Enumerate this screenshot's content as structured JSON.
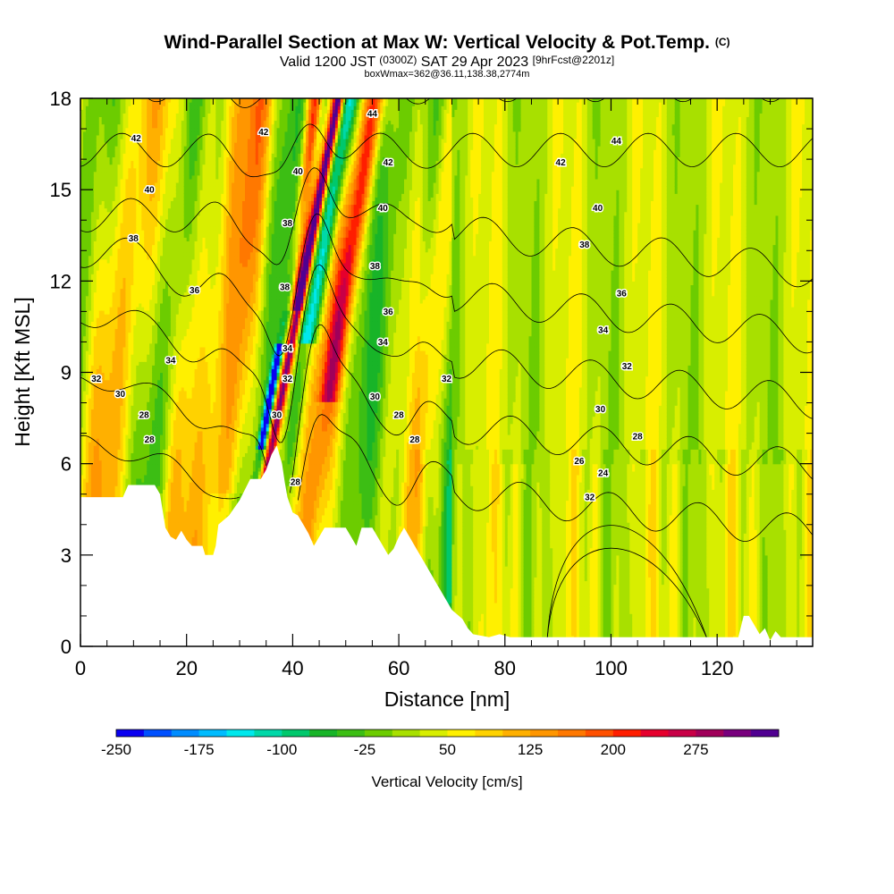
{
  "title": {
    "main": "Wind-Parallel Section at Max W: Vertical Velocity & Pot.Temp.",
    "main_unit": "(C)",
    "valid_prefix": "Valid 1200 JST",
    "valid_utc": "(0300Z)",
    "valid_date": "SAT 29 Apr 2023",
    "forecast": "[9hrFcst@2201z]",
    "box": "boxWmax=362@36.11,138.38,2774m"
  },
  "chart_data": {
    "type": "heatmap",
    "xlabel": "Distance [nm]",
    "ylabel": "Height [Kft MSL]",
    "xlim": [
      0,
      138
    ],
    "ylim": [
      0,
      18
    ],
    "x_ticks": [
      "0",
      "20",
      "40",
      "60",
      "80",
      "100",
      "120"
    ],
    "y_ticks": [
      "0",
      "3",
      "6",
      "9",
      "12",
      "15",
      "18"
    ],
    "colorbar": {
      "label": "Vertical Velocity [cm/s]",
      "tick_labels": [
        "-250",
        "-175",
        "-100",
        "-25",
        "50",
        "125",
        "200",
        "275"
      ],
      "levels": [
        -250,
        -225,
        -200,
        -175,
        -150,
        -125,
        -100,
        -75,
        -50,
        -25,
        0,
        25,
        50,
        75,
        100,
        125,
        150,
        175,
        200,
        225,
        250,
        275,
        300
      ],
      "colors": [
        "#0a00f0",
        "#0050ff",
        "#008cff",
        "#00bcff",
        "#00e8ec",
        "#00d8a8",
        "#00c86c",
        "#18b428",
        "#3cbe14",
        "#6ccc00",
        "#a8e000",
        "#d8ee00",
        "#fff000",
        "#ffd200",
        "#ffb000",
        "#ff9600",
        "#ff7800",
        "#ff5000",
        "#ff1e00",
        "#e6002d",
        "#c80046",
        "#a0005a",
        "#78007d",
        "#500091"
      ]
    },
    "terrain_kft": [
      [
        0,
        4.9
      ],
      [
        8,
        4.9
      ],
      [
        9,
        5.3
      ],
      [
        14,
        5.3
      ],
      [
        15,
        5.0
      ],
      [
        16,
        3.9
      ],
      [
        17,
        3.6
      ],
      [
        18,
        3.5
      ],
      [
        19,
        3.8
      ],
      [
        20,
        3.5
      ],
      [
        21,
        3.3
      ],
      [
        23,
        3.3
      ],
      [
        23.5,
        3.0
      ],
      [
        25,
        3.0
      ],
      [
        25.5,
        3.3
      ],
      [
        26,
        4.0
      ],
      [
        28,
        4.3
      ],
      [
        30,
        4.8
      ],
      [
        32,
        5.5
      ],
      [
        34,
        5.5
      ],
      [
        35,
        5.8
      ],
      [
        36,
        6.3
      ],
      [
        37,
        6.6
      ],
      [
        38,
        6.0
      ],
      [
        38.5,
        5.4
      ],
      [
        39,
        4.9
      ],
      [
        40,
        4.4
      ],
      [
        41,
        4.3
      ],
      [
        42,
        4.0
      ],
      [
        43,
        3.7
      ],
      [
        44,
        3.3
      ],
      [
        45,
        3.6
      ],
      [
        46,
        3.9
      ],
      [
        50,
        3.9
      ],
      [
        51,
        3.6
      ],
      [
        52,
        3.3
      ],
      [
        53,
        3.9
      ],
      [
        55,
        3.9
      ],
      [
        56,
        3.6
      ],
      [
        57,
        3.3
      ],
      [
        58,
        3.0
      ],
      [
        59,
        3.2
      ],
      [
        60,
        3.6
      ],
      [
        61,
        3.9
      ],
      [
        62,
        3.6
      ],
      [
        63,
        3.3
      ],
      [
        64,
        3.0
      ],
      [
        65,
        2.7
      ],
      [
        66,
        2.4
      ],
      [
        67,
        2.1
      ],
      [
        68,
        1.8
      ],
      [
        69,
        1.5
      ],
      [
        70,
        1.2
      ],
      [
        72,
        0.9
      ],
      [
        73,
        0.6
      ],
      [
        74,
        0.4
      ],
      [
        77,
        0.3
      ],
      [
        79,
        0.4
      ],
      [
        81,
        0.3
      ],
      [
        120,
        0.3
      ],
      [
        124,
        0.3
      ],
      [
        125,
        1.0
      ],
      [
        126,
        1.0
      ],
      [
        128,
        0.4
      ],
      [
        129,
        0.6
      ],
      [
        130,
        0.2
      ],
      [
        131,
        0.5
      ],
      [
        132,
        0.3
      ],
      [
        138,
        0.3
      ]
    ],
    "theta_contours_c": [
      "24",
      "26",
      "28",
      "30",
      "32",
      "34",
      "36",
      "38",
      "40",
      "42",
      "44"
    ],
    "contour_labels": [
      {
        "t": "42",
        "x": 10.5,
        "y": 16.7
      },
      {
        "t": "40",
        "x": 13,
        "y": 15.0
      },
      {
        "t": "38",
        "x": 10,
        "y": 13.4
      },
      {
        "t": "36",
        "x": 21.5,
        "y": 11.7
      },
      {
        "t": "34",
        "x": 17,
        "y": 9.4
      },
      {
        "t": "32",
        "x": 3,
        "y": 8.8
      },
      {
        "t": "30",
        "x": 7.5,
        "y": 8.3
      },
      {
        "t": "28",
        "x": 12,
        "y": 7.6
      },
      {
        "t": "28",
        "x": 13,
        "y": 6.8
      },
      {
        "t": "42",
        "x": 34.5,
        "y": 16.9
      },
      {
        "t": "40",
        "x": 41,
        "y": 15.6
      },
      {
        "t": "38",
        "x": 39,
        "y": 13.9
      },
      {
        "t": "38",
        "x": 38.5,
        "y": 11.8
      },
      {
        "t": "34",
        "x": 39,
        "y": 9.8
      },
      {
        "t": "32",
        "x": 39,
        "y": 8.8
      },
      {
        "t": "30",
        "x": 37,
        "y": 7.6
      },
      {
        "t": "28",
        "x": 40.5,
        "y": 5.4
      },
      {
        "t": "44",
        "x": 55,
        "y": 17.5
      },
      {
        "t": "42",
        "x": 58,
        "y": 15.9
      },
      {
        "t": "40",
        "x": 57,
        "y": 14.4
      },
      {
        "t": "38",
        "x": 55.5,
        "y": 12.5
      },
      {
        "t": "36",
        "x": 58,
        "y": 11.0
      },
      {
        "t": "34",
        "x": 57,
        "y": 10.0
      },
      {
        "t": "32",
        "x": 69,
        "y": 8.8
      },
      {
        "t": "30",
        "x": 55.5,
        "y": 8.2
      },
      {
        "t": "28",
        "x": 60,
        "y": 7.6
      },
      {
        "t": "28",
        "x": 63,
        "y": 6.8
      },
      {
        "t": "44",
        "x": 101,
        "y": 16.6
      },
      {
        "t": "42",
        "x": 90.5,
        "y": 15.9
      },
      {
        "t": "40",
        "x": 97.5,
        "y": 14.4
      },
      {
        "t": "38",
        "x": 95,
        "y": 13.2
      },
      {
        "t": "36",
        "x": 102,
        "y": 11.6
      },
      {
        "t": "34",
        "x": 98.5,
        "y": 10.4
      },
      {
        "t": "32",
        "x": 103,
        "y": 9.2
      },
      {
        "t": "30",
        "x": 98,
        "y": 7.8
      },
      {
        "t": "28",
        "x": 105,
        "y": 6.9
      },
      {
        "t": "26",
        "x": 94,
        "y": 6.1
      },
      {
        "t": "24",
        "x": 98.5,
        "y": 5.7
      },
      {
        "t": "32",
        "x": 96,
        "y": 4.9
      }
    ]
  }
}
